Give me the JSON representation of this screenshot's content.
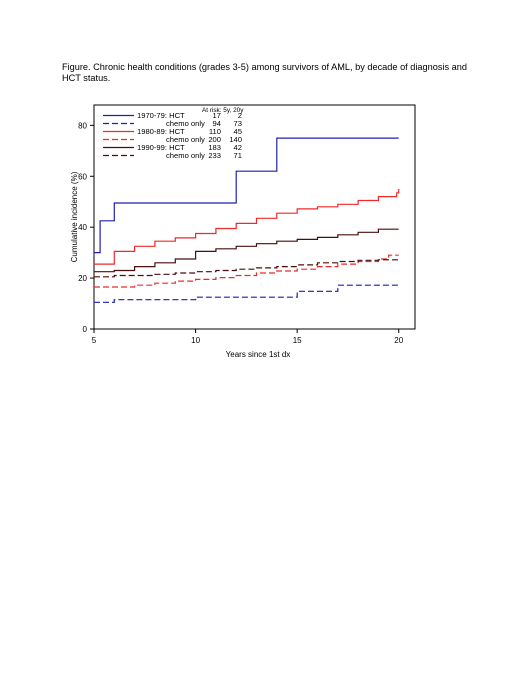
{
  "figure": {
    "caption": "Figure. Chronic health conditions (grades 3-5) among survivors of AML, by decade of diagnosis and HCT status."
  },
  "chart_data": {
    "type": "line",
    "step": true,
    "xlabel": "Years since 1st dx",
    "ylabel": "Cumulative incidence (%)",
    "xlim": [
      5,
      20.8
    ],
    "ylim": [
      0,
      88
    ],
    "xticks": [
      5,
      10,
      15,
      20
    ],
    "yticks": [
      0,
      20,
      40,
      60,
      80
    ],
    "grid": false,
    "legend": {
      "placement": "top-left",
      "header": "At risk: 5y, 20y",
      "entries": [
        {
          "label": "1970-79: HCT",
          "risk5": "17",
          "risk20": "2"
        },
        {
          "label": "chemo only",
          "risk5": "94",
          "risk20": "73"
        },
        {
          "label": "1980-89: HCT",
          "risk5": "110",
          "risk20": "45"
        },
        {
          "label": "chemo only",
          "risk5": "200",
          "risk20": "140"
        },
        {
          "label": "1990-99: HCT",
          "risk5": "183",
          "risk20": "42"
        },
        {
          "label": "chemo only",
          "risk5": "233",
          "risk20": "71"
        }
      ]
    },
    "series": [
      {
        "color": "#1f1fb4",
        "dash": false,
        "x": [
          5,
          5.3,
          6,
          12,
          14,
          20
        ],
        "y": [
          30,
          42.5,
          49.5,
          62,
          75,
          75
        ]
      },
      {
        "color": "#1f1fb4",
        "dash": true,
        "x": [
          5,
          6,
          10,
          15,
          17,
          20
        ],
        "y": [
          10.5,
          11.5,
          12.5,
          14.8,
          17.2,
          17.2
        ]
      },
      {
        "color": "#ee2a2a",
        "dash": false,
        "x": [
          5,
          6,
          7,
          8,
          9,
          10,
          11,
          12,
          13,
          14,
          15,
          16,
          17,
          18,
          19,
          19.9,
          20
        ],
        "y": [
          25.5,
          30.5,
          32.5,
          34.5,
          35.8,
          37.5,
          39.5,
          41.5,
          43.5,
          45.5,
          47.2,
          48,
          49,
          50.5,
          52,
          53.5,
          55
        ]
      },
      {
        "color": "#ee2a2a",
        "dash": true,
        "x": [
          5,
          7,
          8,
          9,
          10,
          11,
          12,
          13,
          14,
          15,
          16,
          17,
          18,
          19,
          19.5,
          20
        ],
        "y": [
          16.5,
          17.2,
          18,
          18.8,
          19.5,
          20.2,
          21,
          22,
          22.8,
          23.5,
          24.5,
          25.5,
          26.5,
          27.5,
          29,
          29
        ]
      },
      {
        "color": "#4a0e0e",
        "dash": false,
        "x": [
          5,
          6,
          7,
          8,
          9,
          10,
          11,
          12,
          13,
          14,
          15,
          16,
          17,
          18,
          19,
          20
        ],
        "y": [
          22.5,
          23,
          24.5,
          26,
          27.5,
          30.5,
          31.5,
          32.5,
          33.5,
          34.5,
          35.2,
          36,
          37,
          38,
          39.2,
          39.2
        ]
      },
      {
        "color": "#4a0e0e",
        "dash": true,
        "x": [
          5,
          6,
          8,
          9,
          10,
          11,
          12,
          13,
          14,
          15,
          16,
          17,
          18,
          19,
          20
        ],
        "y": [
          20.5,
          21,
          21.5,
          22,
          22.5,
          23,
          23.5,
          24,
          24.5,
          25.2,
          26,
          26.5,
          27,
          27.2,
          27.2
        ]
      }
    ]
  }
}
